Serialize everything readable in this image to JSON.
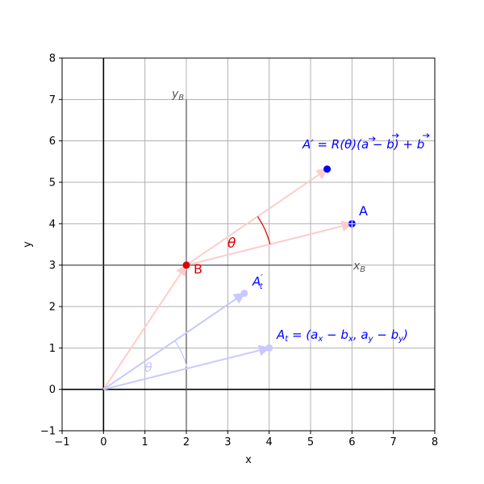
{
  "chart_data": {
    "type": "scatter",
    "title": "",
    "xlabel": "x",
    "ylabel": "y",
    "xlim": [
      -1,
      8
    ],
    "ylim": [
      -1,
      8
    ],
    "xticks": [
      -1,
      0,
      1,
      2,
      3,
      4,
      5,
      6,
      7,
      8
    ],
    "yticks": [
      -1,
      0,
      1,
      2,
      3,
      4,
      5,
      6,
      7,
      8
    ],
    "xtick_labels": [
      "−1",
      "0",
      "1",
      "2",
      "3",
      "4",
      "5",
      "6",
      "7",
      "8"
    ],
    "ytick_labels": [
      "−1",
      "0",
      "1",
      "2",
      "3",
      "4",
      "5",
      "6",
      "7",
      "8"
    ],
    "grid": true,
    "colors": {
      "blue": "#0000ff",
      "red": "#dd0000",
      "light_red": "#ffcccc",
      "light_blue": "#c8c8ff",
      "frame_axis": "#444444"
    },
    "points": {
      "B": {
        "x": 2,
        "y": 3,
        "label": "B"
      },
      "A": {
        "x": 6,
        "y": 4,
        "label": "A"
      },
      "A_prime": {
        "x": 5.4,
        "y": 5.32
      },
      "A_t": {
        "x": 4,
        "y": 1
      },
      "A_t_prime": {
        "x": 3.4,
        "y": 2.32
      }
    },
    "frame_axes": {
      "x_end": 6,
      "y_end": 7,
      "x_label_main": "x",
      "x_label_sub": "B",
      "y_label_main": "y",
      "y_label_sub": "B"
    },
    "annotations": {
      "theta": "θ",
      "a_prime_lhs": "A′ = R(",
      "a_prime_mid": ")(",
      "a_prime_a": "a",
      "a_prime_minus": " − ",
      "a_prime_b": "b",
      "a_prime_close": ") + ",
      "a_prime_b2": "b",
      "at_lhs": "A",
      "at_sub": "t",
      "at_eq": " = (a",
      "at_x1": "x",
      "at_minus1": " − b",
      "at_x2": "x",
      "at_comma": ", a",
      "at_y1": "y",
      "at_minus2": " − b",
      "at_y2": "y",
      "at_close": ")",
      "atp_main": "A",
      "atp_prime": "′",
      "atp_sub": "t"
    }
  }
}
